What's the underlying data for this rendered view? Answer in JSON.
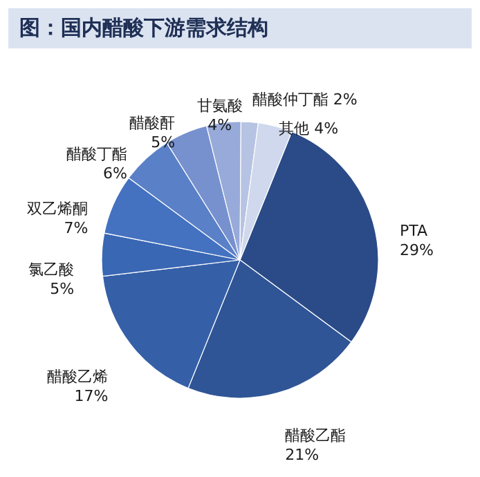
{
  "chart_data": {
    "type": "pie",
    "title": "图：国内醋酸下游需求结构",
    "categories": [
      "PTA",
      "醋酸乙酯",
      "醋酸乙烯",
      "氯乙酸",
      "双乙烯酮",
      "醋酸丁酯",
      "醋酸酐",
      "甘氨酸",
      "醋酸仲丁酯",
      "其他"
    ],
    "values": [
      29,
      21,
      17,
      5,
      7,
      6,
      5,
      4,
      2,
      4
    ],
    "value_labels": [
      "29%",
      "21%",
      "17%",
      "5%",
      "7%",
      "6%",
      "5%",
      "4%",
      "2%",
      "4%"
    ],
    "colors": [
      "#2b4b88",
      "#2f5596",
      "#3560a8",
      "#3a67b4",
      "#4472c0",
      "#5a80c7",
      "#7791cf",
      "#97aad9",
      "#b6c3e3",
      "#cfd8ec"
    ]
  }
}
